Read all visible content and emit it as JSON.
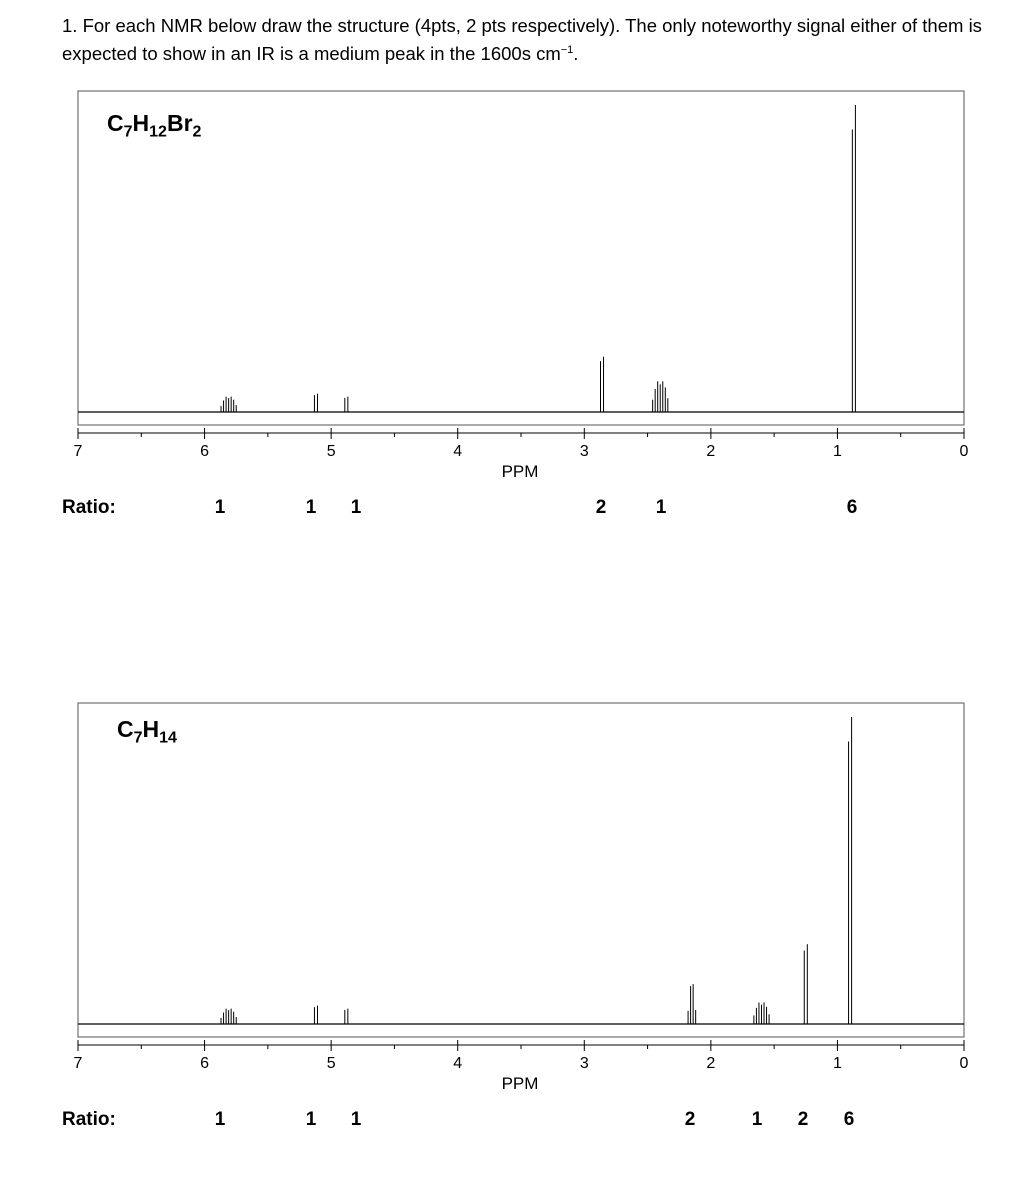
{
  "question": {
    "text": "1. For each NMR below draw the structure (4pts, 2 pts respectively).  The only noteworthy signal either of them is expected to show in an IR is a medium peak in the 1600s cm",
    "superscript": "−1",
    "end": "."
  },
  "ratio_label": "Ratio:",
  "chart_data": [
    {
      "type": "line",
      "formula": [
        [
          "C",
          ""
        ],
        [
          "7",
          "sub"
        ],
        [
          "H",
          ""
        ],
        [
          "12",
          "sub"
        ],
        [
          "Br",
          ""
        ],
        [
          "2",
          "sub"
        ]
      ],
      "xlabel": "PPM",
      "xlim": [
        7,
        0
      ],
      "x_reversed": true,
      "x_ticks": [
        7,
        6,
        5,
        4,
        3,
        2,
        1,
        0
      ],
      "grid": false,
      "y_axis_shown": false,
      "peaks": [
        {
          "shift": 5.81,
          "multiplicity": "m",
          "rel_height": 0.05,
          "ratio": "1"
        },
        {
          "shift": 5.12,
          "multiplicity": "d",
          "rel_height": 0.06,
          "ratio": "1"
        },
        {
          "shift": 4.88,
          "multiplicity": "d",
          "rel_height": 0.05,
          "ratio": "1"
        },
        {
          "shift": 2.86,
          "multiplicity": "d",
          "rel_height": 0.18,
          "ratio": "2"
        },
        {
          "shift": 2.4,
          "multiplicity": "m",
          "rel_height": 0.1,
          "ratio": "1"
        },
        {
          "shift": 0.87,
          "multiplicity": "d",
          "rel_height": 1.0,
          "ratio": "6"
        }
      ],
      "ratio_values": [
        "1",
        "1",
        "1",
        "2",
        "1",
        "6"
      ]
    },
    {
      "type": "line",
      "formula": [
        [
          "C",
          ""
        ],
        [
          "7",
          "sub"
        ],
        [
          "H",
          ""
        ],
        [
          "14",
          "sub"
        ]
      ],
      "xlabel": "PPM",
      "xlim": [
        7,
        0
      ],
      "x_reversed": true,
      "x_ticks": [
        7,
        6,
        5,
        4,
        3,
        2,
        1,
        0
      ],
      "grid": false,
      "y_axis_shown": false,
      "peaks": [
        {
          "shift": 5.81,
          "multiplicity": "m",
          "rel_height": 0.05,
          "ratio": "1"
        },
        {
          "shift": 5.12,
          "multiplicity": "d",
          "rel_height": 0.06,
          "ratio": "1"
        },
        {
          "shift": 4.88,
          "multiplicity": "d",
          "rel_height": 0.05,
          "ratio": "1"
        },
        {
          "shift": 2.15,
          "multiplicity": "q",
          "rel_height": 0.13,
          "ratio": "2"
        },
        {
          "shift": 1.6,
          "multiplicity": "m",
          "rel_height": 0.07,
          "ratio": "1"
        },
        {
          "shift": 1.25,
          "multiplicity": "d",
          "rel_height": 0.26,
          "ratio": "2"
        },
        {
          "shift": 0.9,
          "multiplicity": "d",
          "rel_height": 1.0,
          "ratio": "6"
        }
      ],
      "ratio_values": [
        "1",
        "1",
        "1",
        "2",
        "1",
        "2",
        "6"
      ]
    }
  ]
}
